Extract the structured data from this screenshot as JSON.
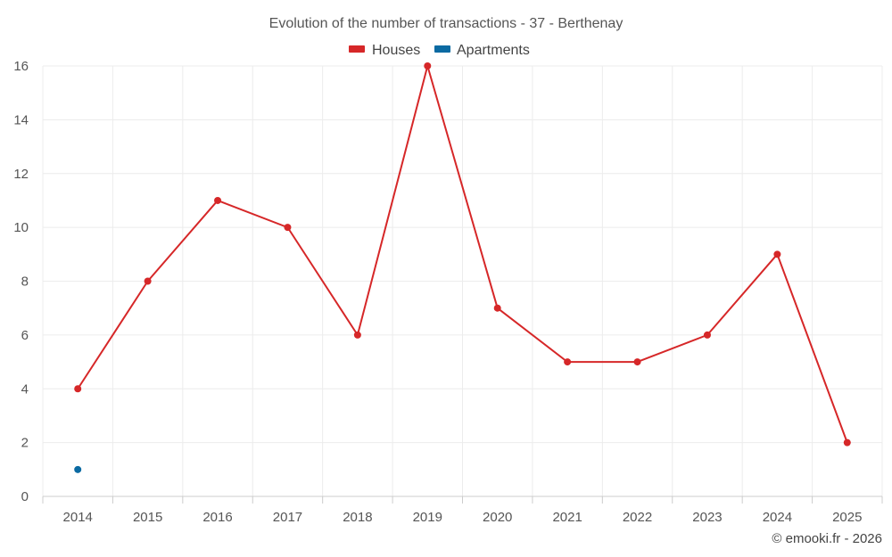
{
  "chart_data": {
    "type": "line",
    "title": "Evolution of the number of transactions - 37 - Berthenay",
    "categories": [
      "2014",
      "2015",
      "2016",
      "2017",
      "2018",
      "2019",
      "2020",
      "2021",
      "2022",
      "2023",
      "2024",
      "2025"
    ],
    "series": [
      {
        "name": "Houses",
        "color": "#d62728",
        "values": [
          4,
          8,
          11,
          10,
          6,
          16,
          7,
          5,
          5,
          6,
          9,
          2
        ]
      },
      {
        "name": "Apartments",
        "color": "#0b6aa2",
        "values": [
          1,
          null,
          null,
          null,
          null,
          null,
          null,
          null,
          null,
          null,
          null,
          null
        ]
      }
    ],
    "y_ticks": [
      "0",
      "2",
      "4",
      "6",
      "8",
      "10",
      "12",
      "14",
      "16"
    ],
    "ylim": [
      0,
      16
    ],
    "xlabel": "",
    "ylabel": "",
    "grid": true,
    "legend_position": "top-center"
  },
  "credit": "© emooki.fr - 2026"
}
